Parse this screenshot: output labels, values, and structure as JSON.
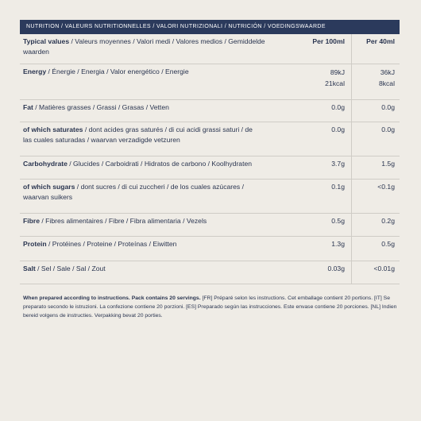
{
  "header": "NUTRITION / VALEURS NUTRITIONNELLES / VALORI NUTRIZIONALI / NUTRICIÓN / VOEDINGSWAARDE",
  "columns": {
    "label_bold": "Typical values",
    "label_rest": " / Valeurs moyennes / Valori medi / Valores medios / Gemiddelde waarden",
    "per100": "Per 100ml",
    "per40": "Per 40ml"
  },
  "rows": [
    {
      "bold": "Energy",
      "rest": " / Énergie / Energia / Valor energético / Energie",
      "v100": "89kJ\n21kcal",
      "v40": "36kJ\n8kcal"
    },
    {
      "bold": "Fat",
      "rest": " / Matières grasses / Grassi / Grasas / Vetten",
      "v100": "0.0g",
      "v40": "0.0g"
    },
    {
      "bold": "of which saturates",
      "rest": " / dont acides gras saturés / di cui acidi grassi saturi / de las cuales saturadas / waarvan verzadigde vetzuren",
      "v100": "0.0g",
      "v40": "0.0g"
    },
    {
      "bold": "Carbohydrate",
      "rest": " / Glucides / Carboidrati / Hidratos de carbono / Koolhydraten",
      "v100": "3.7g",
      "v40": "1.5g"
    },
    {
      "bold": "of which sugars",
      "rest": " / dont sucres / di cui zuccheri / de los cuales azúcares / waarvan suikers",
      "v100": "0.1g",
      "v40": "<0.1g"
    },
    {
      "bold": "Fibre",
      "rest": " / Fibres alimentaires / Fibre / Fibra alimentaria / Vezels",
      "v100": "0.5g",
      "v40": "0.2g"
    },
    {
      "bold": "Protein",
      "rest": " / Protéines / Proteine / Proteínas / Eiwitten",
      "v100": "1.3g",
      "v40": "0.5g"
    },
    {
      "bold": "Salt",
      "rest": " / Sel / Sale / Sal / Zout",
      "v100": "0.03g",
      "v40": "<0.01g"
    }
  ],
  "footer": {
    "bold": "When prepared according to instructions. Pack contains 20 servings.",
    "rest": " [FR] Préparé selon les instructions. Cet emballage contient 20 portions. [IT] Se preparato secondo le istruzioni. La confezione contiene 20 porzioni. [ES] Preparado según las instrucciones. Este envase contiene 20 porciones. [NL] Indien bereid volgens de instructies. Verpakking bevat 20 porties."
  }
}
